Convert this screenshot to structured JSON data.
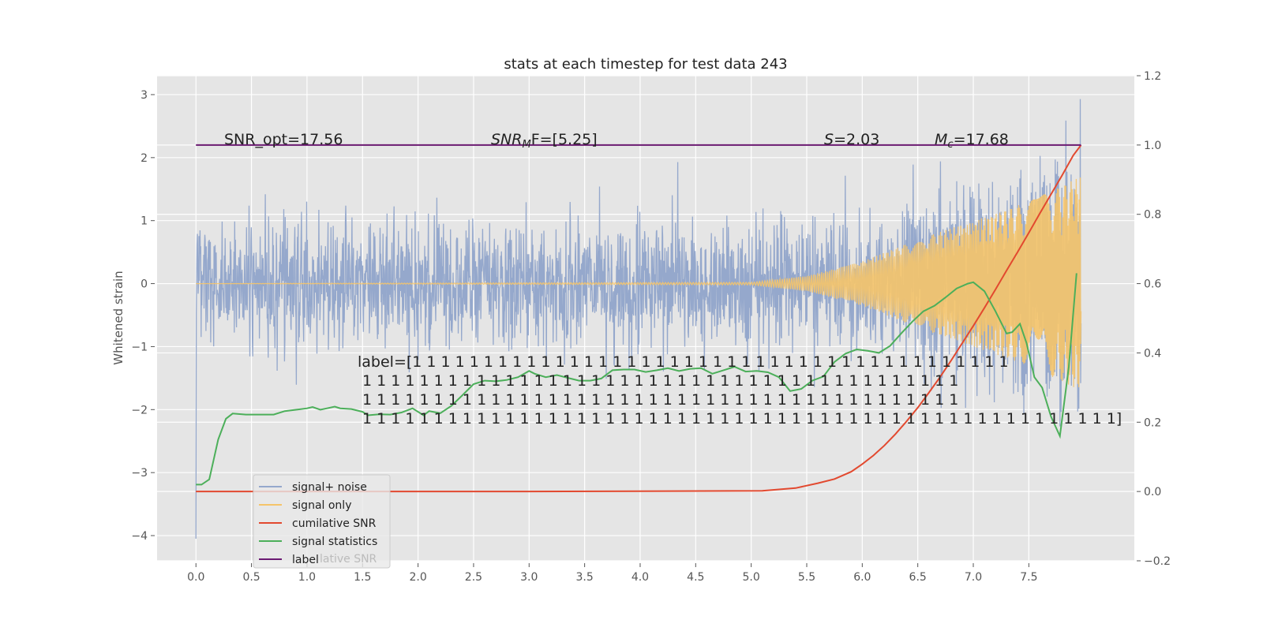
{
  "chart_data": {
    "type": "line",
    "title": "stats at each timestep for test data 243",
    "ylabel": "Whitened strain",
    "xlabel": "",
    "xlim": [
      -0.35,
      8.45
    ],
    "ylim": [
      -4.4,
      3.3
    ],
    "y2lim": [
      -0.2,
      1.2
    ],
    "x_ticks": [
      0.0,
      0.5,
      1.0,
      1.5,
      2.0,
      2.5,
      3.0,
      3.5,
      4.0,
      4.5,
      5.0,
      5.5,
      6.0,
      6.5,
      7.0,
      7.5
    ],
    "x_tick_labels": [
      "0.0",
      "0.5",
      "1.0",
      "1.5",
      "2.0",
      "2.5",
      "3.0",
      "3.5",
      "4.0",
      "4.5",
      "5.0",
      "5.5",
      "6.0",
      "6.5",
      "7.0",
      "7.5"
    ],
    "y_ticks": [
      3,
      2,
      1,
      0,
      -1,
      -2,
      -3,
      -4
    ],
    "y_tick_labels": [
      "3",
      "2",
      "1",
      "0",
      "−1",
      "−2",
      "−3",
      "−4"
    ],
    "y2_ticks": [
      1.2,
      1.0,
      0.8,
      0.6,
      0.4,
      0.2,
      0.0,
      -0.2
    ],
    "y2_tick_labels": [
      "1.2",
      "1.0",
      "0.8",
      "0.6",
      "0.4",
      "0.2",
      "0.0",
      "−0.2"
    ],
    "grid": true,
    "legend_position": "bottom-left",
    "annotations": {
      "snr_opt": "SNR_opt=17.56",
      "snr_mf_name": "SNR",
      "snr_mf_sub": "M",
      "snr_mf_rest": "F=[5.25]",
      "s_name": "S",
      "s_rest": "=2.03",
      "mc_name": "M",
      "mc_sub": "c",
      "mc_rest": "=17.68",
      "label_lines": [
        "label=[1 1 1 1 1 1 1 1 1 1 1 1 1 1 1 1 1 1 1 1 1 1 1 1 1 1 1 1 1 1 1 1 1 1 1 1 1 1 1 1 1 1",
        " 1 1 1 1 1 1 1 1 1 1 1 1 1 1 1 1 1 1 1 1 1 1 1 1 1 1 1 1 1 1 1 1 1 1 1 1 1 1 1 1 1 1",
        " 1 1 1 1 1 1 1 1 1 1 1 1 1 1 1 1 1 1 1 1 1 1 1 1 1 1 1 1 1 1 1 1 1 1 1 1 1 1 1 1 1 1",
        " 1 1 1 1 1 1 1 1 1 1 1 1 1 1 1 1 1 1 1 1 1 1 1 1 1 1 1 1 1 1 1 1 1 1 1 1 1 1 1 1 1 1 1 1 1 1 1 1 1 1 1 1 1]"
      ]
    },
    "legend_overlap_text": "lative SNR",
    "series": [
      {
        "name": "signal+ noise",
        "axis": "left",
        "color": "#95a8cc",
        "generated": "white noise amplitude ~0.95 with chirp (freq 40Hz to 110Hz) growing in the last 2.5 s; minimum -4.05 at x=0.0, maximum 2.93 at x=7.97",
        "x_range": [
          0.0,
          7.97
        ],
        "envelope_x": [
          0.0,
          1.0,
          2.0,
          3.0,
          4.0,
          5.0,
          5.5,
          6.0,
          6.5,
          7.0,
          7.5,
          7.97
        ],
        "envelope_amp": [
          1.05,
          1.05,
          1.05,
          1.05,
          1.05,
          1.1,
          1.2,
          1.4,
          1.7,
          2.0,
          2.3,
          2.6
        ]
      },
      {
        "name": "signal only",
        "axis": "left",
        "color": "#f5c46a",
        "generated": "chirp starting near 0 at x=5.0, envelope grows to ~1.7 at x=7.97",
        "envelope_x": [
          0.0,
          5.0,
          5.5,
          6.0,
          6.5,
          7.0,
          7.5,
          7.97
        ],
        "envelope_amp": [
          0.0,
          0.02,
          0.12,
          0.35,
          0.7,
          1.0,
          1.3,
          1.7
        ]
      },
      {
        "name": "cumilative SNR",
        "axis": "right",
        "color": "#e2492f",
        "x": [
          0.0,
          1.0,
          2.0,
          3.0,
          4.0,
          5.1,
          5.4,
          5.6,
          5.75,
          5.9,
          6.0,
          6.1,
          6.2,
          6.3,
          6.4,
          6.5,
          6.6,
          6.7,
          6.8,
          6.9,
          7.0,
          7.1,
          7.2,
          7.3,
          7.4,
          7.5,
          7.6,
          7.7,
          7.8,
          7.9,
          7.97
        ],
        "y": [
          0.0,
          0.0,
          0.0,
          0.0,
          0.001,
          0.002,
          0.01,
          0.024,
          0.036,
          0.057,
          0.079,
          0.104,
          0.133,
          0.166,
          0.203,
          0.242,
          0.285,
          0.33,
          0.378,
          0.428,
          0.478,
          0.53,
          0.583,
          0.638,
          0.692,
          0.747,
          0.803,
          0.858,
          0.913,
          0.97,
          1.0
        ]
      },
      {
        "name": "signal statistics",
        "axis": "right",
        "color": "#4caf5a",
        "x": [
          0.0,
          0.05,
          0.12,
          0.2,
          0.27,
          0.33,
          0.45,
          0.6,
          0.7,
          0.8,
          0.9,
          1.0,
          1.05,
          1.12,
          1.18,
          1.25,
          1.3,
          1.4,
          1.5,
          1.55,
          1.65,
          1.75,
          1.85,
          1.95,
          2.05,
          2.1,
          2.2,
          2.3,
          2.4,
          2.5,
          2.6,
          2.7,
          2.8,
          2.9,
          3.0,
          3.05,
          3.15,
          3.25,
          3.35,
          3.45,
          3.55,
          3.65,
          3.75,
          3.85,
          3.95,
          4.05,
          4.15,
          4.25,
          4.35,
          4.45,
          4.55,
          4.65,
          4.75,
          4.85,
          4.95,
          5.05,
          5.15,
          5.25,
          5.35,
          5.45,
          5.55,
          5.65,
          5.75,
          5.85,
          5.95,
          6.05,
          6.15,
          6.25,
          6.35,
          6.45,
          6.55,
          6.65,
          6.75,
          6.85,
          6.95,
          7.0,
          7.1,
          7.2,
          7.3,
          7.35,
          7.42,
          7.48,
          7.55,
          7.62,
          7.7,
          7.78,
          7.86,
          7.93
        ],
        "y": [
          0.02,
          0.02,
          0.035,
          0.15,
          0.21,
          0.225,
          0.222,
          0.222,
          0.222,
          0.232,
          0.236,
          0.24,
          0.244,
          0.236,
          0.24,
          0.245,
          0.24,
          0.238,
          0.23,
          0.22,
          0.223,
          0.222,
          0.228,
          0.24,
          0.22,
          0.232,
          0.226,
          0.247,
          0.278,
          0.31,
          0.32,
          0.318,
          0.322,
          0.33,
          0.348,
          0.34,
          0.33,
          0.336,
          0.328,
          0.32,
          0.32,
          0.326,
          0.35,
          0.352,
          0.352,
          0.345,
          0.35,
          0.356,
          0.348,
          0.354,
          0.356,
          0.34,
          0.35,
          0.36,
          0.346,
          0.348,
          0.344,
          0.33,
          0.29,
          0.296,
          0.32,
          0.332,
          0.374,
          0.398,
          0.41,
          0.406,
          0.4,
          0.42,
          0.456,
          0.49,
          0.52,
          0.536,
          0.56,
          0.586,
          0.6,
          0.604,
          0.578,
          0.52,
          0.456,
          0.46,
          0.484,
          0.428,
          0.33,
          0.3,
          0.216,
          0.16,
          0.36,
          0.63
        ]
      },
      {
        "name": "label",
        "axis": "right",
        "color": "#6b1a72",
        "x": [
          0.0,
          7.97
        ],
        "y": [
          1.0,
          1.0
        ]
      }
    ]
  }
}
